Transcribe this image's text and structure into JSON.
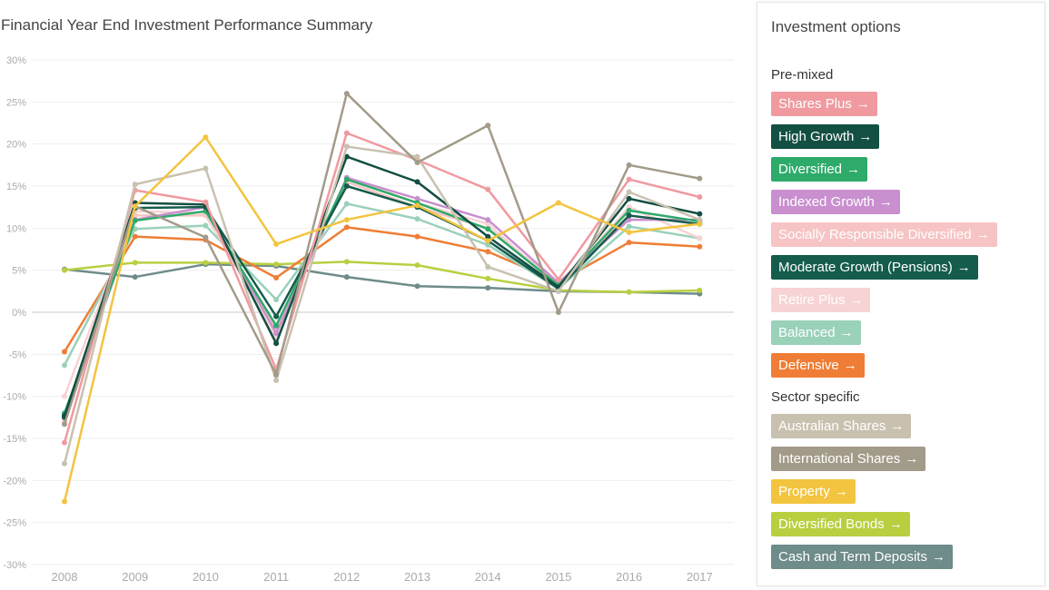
{
  "chart_data": {
    "type": "line",
    "title": "Financial Year End Investment Performance Summary",
    "x": [
      "2008",
      "2009",
      "2010",
      "2011",
      "2012",
      "2013",
      "2014",
      "2015",
      "2016",
      "2017"
    ],
    "ylim": [
      -30,
      30
    ],
    "yticks": [
      30,
      25,
      20,
      15,
      10,
      5,
      0,
      -5,
      -10,
      -15,
      -20,
      -25,
      -30
    ],
    "ytick_labels": [
      "30%",
      "25%",
      "20%",
      "15%",
      "10%",
      "5%",
      "0%",
      "-5%",
      "-10%",
      "-15%",
      "-20%",
      "-25%",
      "-30%"
    ],
    "grid": true,
    "legend_position": "right",
    "series": [
      {
        "name": "Cash and Term Deposits",
        "color": "#6e8c89",
        "values": [
          5.1,
          4.2,
          5.7,
          5.5,
          4.2,
          3.1,
          2.9,
          2.5,
          2.4,
          2.2
        ]
      },
      {
        "name": "Diversified Bonds",
        "color": "#b9cf40",
        "values": [
          5.0,
          5.9,
          5.9,
          5.7,
          6.0,
          5.6,
          4.0,
          2.6,
          2.4,
          2.6
        ]
      },
      {
        "name": "Defensive",
        "color": "#ef7d35",
        "values": [
          -4.7,
          9.0,
          8.6,
          4.1,
          10.1,
          9.0,
          7.2,
          3.6,
          8.3,
          7.8
        ]
      },
      {
        "name": "Balanced",
        "color": "#9ad1b9",
        "values": [
          -6.3,
          9.9,
          10.3,
          1.5,
          12.9,
          11.1,
          8.0,
          2.8,
          10.2,
          8.8
        ]
      },
      {
        "name": "Socially Responsible Diversified",
        "color": "#f6c4c4",
        "values": [
          -13.0,
          11.5,
          11.5,
          -2.0,
          15.5,
          12.5,
          10.0,
          3.5,
          11.5,
          10.5
        ]
      },
      {
        "name": "Retire Plus",
        "color": "#f8d3d3",
        "values": [
          -10.0,
          12.0,
          11.8,
          -3.0,
          16.0,
          13.0,
          10.5,
          3.0,
          12.5,
          8.8
        ]
      },
      {
        "name": "Indexed Growth",
        "color": "#c98fcf",
        "values": [
          -12.5,
          11.0,
          12.5,
          -2.5,
          16.0,
          13.5,
          11.0,
          3.5,
          11.0,
          11.0
        ]
      },
      {
        "name": "Diversified",
        "color": "#2eaa6a",
        "values": [
          -12.0,
          10.9,
          12.0,
          -1.6,
          15.8,
          13.0,
          9.9,
          3.2,
          12.1,
          10.8
        ]
      },
      {
        "name": "Moderate Growth (Pensions)",
        "color": "#155c4c",
        "values": [
          -12.5,
          12.4,
          12.5,
          -0.5,
          15.0,
          12.5,
          8.5,
          2.8,
          11.5,
          10.5
        ]
      },
      {
        "name": "High Growth",
        "color": "#134f42",
        "values": [
          -12.3,
          13.0,
          12.8,
          -3.7,
          18.5,
          15.5,
          9.0,
          3.0,
          13.5,
          11.7
        ]
      },
      {
        "name": "Shares Plus",
        "color": "#f09aa0",
        "values": [
          -15.5,
          14.5,
          13.1,
          -6.8,
          21.3,
          18.1,
          14.6,
          3.9,
          15.8,
          13.7
        ]
      },
      {
        "name": "Australian Shares",
        "color": "#c9c1b0",
        "values": [
          -18.0,
          15.2,
          17.1,
          -8.1,
          19.7,
          18.5,
          5.4,
          2.5,
          14.3,
          11.0
        ]
      },
      {
        "name": "International Shares",
        "color": "#a39b89",
        "values": [
          -13.3,
          12.6,
          8.9,
          -7.4,
          26.0,
          17.8,
          22.2,
          0.0,
          17.5,
          15.9
        ]
      },
      {
        "name": "Property",
        "color": "#f3c43f",
        "values": [
          -22.5,
          12.6,
          20.8,
          8.1,
          11.0,
          12.7,
          8.5,
          13.0,
          9.5,
          10.5
        ]
      }
    ]
  },
  "panel": {
    "title": "Investment options",
    "arrow": "→",
    "groups": [
      {
        "heading": "Pre-mixed",
        "items": [
          {
            "label": "Shares Plus",
            "color": "#f09aa0"
          },
          {
            "label": "High Growth",
            "color": "#134f42"
          },
          {
            "label": "Diversified",
            "color": "#2eaa6a"
          },
          {
            "label": "Indexed Growth",
            "color": "#c98fcf"
          },
          {
            "label": "Socially Responsible Diversified",
            "color": "#f6c4c4"
          },
          {
            "label": "Moderate Growth (Pensions)",
            "color": "#155c4c"
          },
          {
            "label": "Retire Plus",
            "color": "#f8d3d3"
          },
          {
            "label": "Balanced",
            "color": "#9ad1b9"
          },
          {
            "label": "Defensive",
            "color": "#ef7d35"
          }
        ]
      },
      {
        "heading": "Sector specific",
        "items": [
          {
            "label": "Australian Shares",
            "color": "#c9c1b0"
          },
          {
            "label": "International Shares",
            "color": "#a39b89"
          },
          {
            "label": "Property",
            "color": "#f3c43f"
          },
          {
            "label": "Diversified Bonds",
            "color": "#b9cf40"
          },
          {
            "label": "Cash and Term Deposits",
            "color": "#6e8c89"
          }
        ]
      }
    ]
  }
}
